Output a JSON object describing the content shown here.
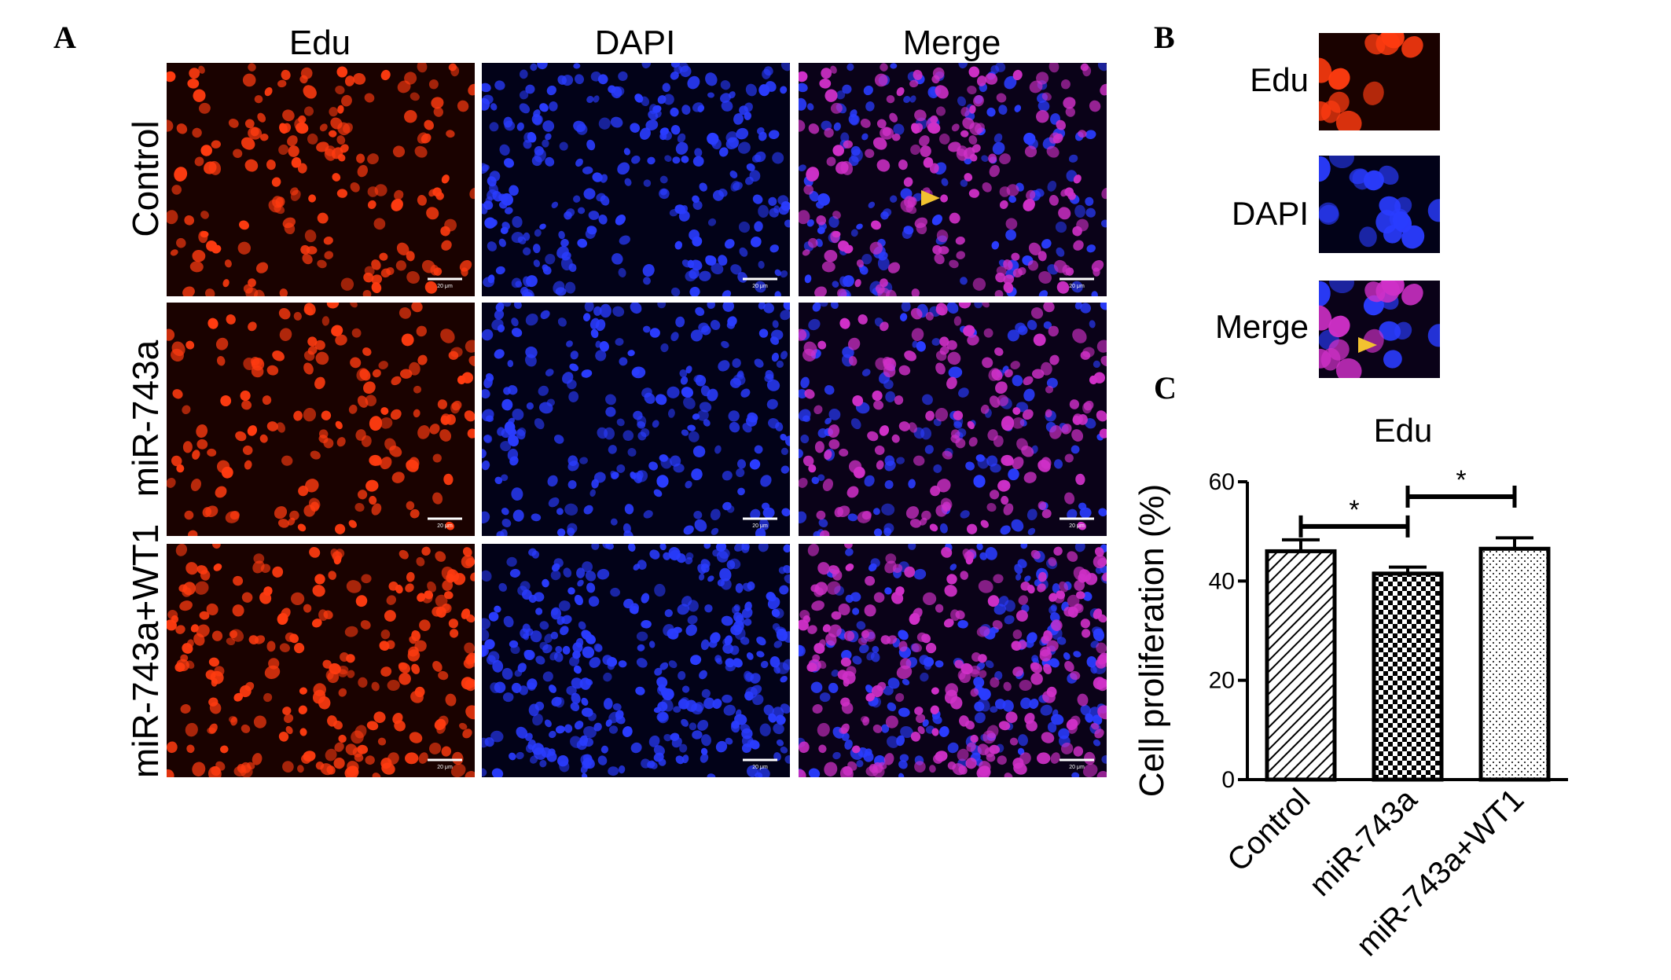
{
  "panels": {
    "a": "A",
    "b": "B",
    "c": "C"
  },
  "panel_a": {
    "columns": [
      "Edu",
      "DAPI",
      "Merge"
    ],
    "rows": [
      "Control",
      "miR-743a",
      "miR-743a+WT1"
    ],
    "scale_bar_label": "20 μm"
  },
  "panel_b": {
    "labels": [
      "Edu",
      "DAPI",
      "Merge"
    ]
  },
  "colors": {
    "edu": "#ff3b10",
    "dapi": "#2a3cff",
    "merge": "#d030c8",
    "arrow": "#f2c230"
  },
  "chart_data": {
    "type": "bar",
    "title": "Edu",
    "ylabel": "Cell proliferation (%)",
    "xlabel": "",
    "categories": [
      "Control",
      "miR-743a",
      "miR-743a+WT1"
    ],
    "values": [
      46,
      41.5,
      46.5
    ],
    "errors": [
      2.3,
      1.3,
      2.2
    ],
    "ylim": [
      0,
      60
    ],
    "yticks": [
      0,
      20,
      40,
      60
    ],
    "patterns": [
      "diagonal-hatch",
      "checkerboard",
      "dots"
    ],
    "significance": [
      {
        "from": "Control",
        "to": "miR-743a",
        "label": "*"
      },
      {
        "from": "miR-743a",
        "to": "miR-743a+WT1",
        "label": "*"
      }
    ]
  }
}
